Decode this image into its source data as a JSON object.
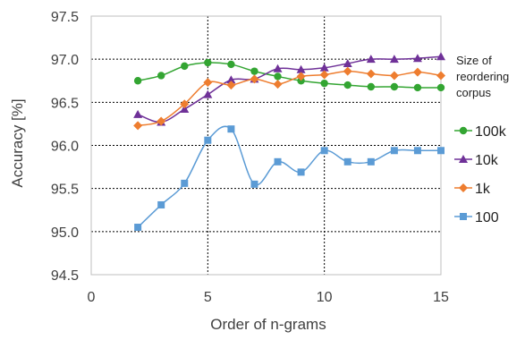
{
  "chart_data": {
    "type": "line",
    "xlabel": "Order of n-grams",
    "ylabel": "Accuracy [%]",
    "xlim": [
      0,
      15
    ],
    "ylim": [
      94.5,
      97.5
    ],
    "xticks": [
      0,
      5,
      10,
      15
    ],
    "yticks": [
      94.5,
      95.0,
      95.5,
      96.0,
      96.5,
      97.0,
      97.5
    ],
    "xtick_labels": [
      "0",
      "5",
      "10",
      "15"
    ],
    "ytick_labels": [
      "94.5",
      "95.0",
      "95.5",
      "96.0",
      "96.5",
      "97.0",
      "97.5"
    ],
    "grid": true,
    "legend_title": [
      "Size of",
      "reordering",
      "corpus"
    ],
    "legend_position": "right",
    "x": [
      2,
      3,
      4,
      5,
      6,
      7,
      8,
      9,
      10,
      11,
      12,
      13,
      14,
      15
    ],
    "series": [
      {
        "name": "100k",
        "marker": "circle",
        "color": "#33a532",
        "values": [
          96.75,
          96.81,
          96.92,
          96.96,
          96.94,
          96.86,
          96.8,
          96.75,
          96.72,
          96.7,
          96.68,
          96.68,
          96.67,
          96.67
        ]
      },
      {
        "name": "10k",
        "marker": "triangle",
        "color": "#6f3198",
        "values": [
          96.36,
          96.27,
          96.42,
          96.59,
          96.76,
          96.77,
          96.89,
          96.88,
          96.9,
          96.95,
          97.0,
          97.0,
          97.01,
          97.03
        ]
      },
      {
        "name": "1k",
        "marker": "diamond",
        "color": "#ee7d2f",
        "values": [
          96.23,
          96.28,
          96.48,
          96.73,
          96.7,
          96.77,
          96.71,
          96.8,
          96.82,
          96.86,
          96.83,
          96.81,
          96.85,
          96.81
        ]
      },
      {
        "name": "100",
        "marker": "square",
        "color": "#5b9bd5",
        "values": [
          95.05,
          95.31,
          95.56,
          96.06,
          96.19,
          95.55,
          95.81,
          95.69,
          95.94,
          95.81,
          95.81,
          95.94,
          95.94,
          95.94
        ]
      }
    ]
  }
}
